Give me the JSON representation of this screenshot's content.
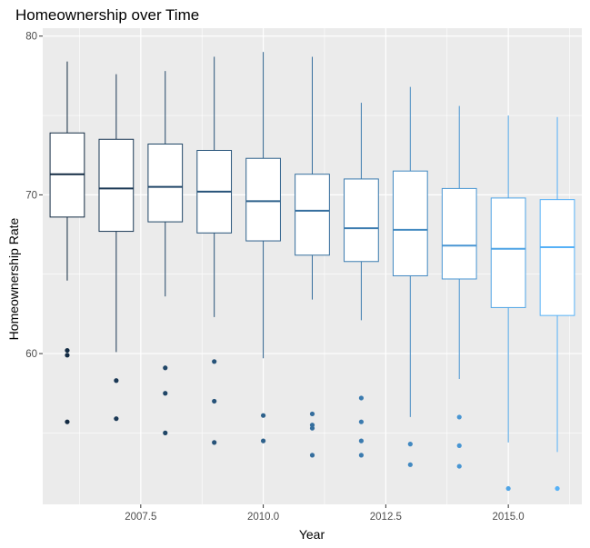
{
  "chart_data": {
    "type": "boxplot",
    "title": "Homeownership over Time",
    "xlabel": "Year",
    "ylabel": "Homeownership Rate",
    "xlim": [
      2005.5,
      2016.5
    ],
    "ylim": [
      50.5,
      80.5
    ],
    "x_ticks": [
      2007.5,
      2010.0,
      2012.5,
      2015.0
    ],
    "x_tick_labels": [
      "2007.5",
      "2010.0",
      "2012.5",
      "2015.0"
    ],
    "y_ticks": [
      60,
      70,
      80
    ],
    "y_tick_labels": [
      "60",
      "70",
      "80"
    ],
    "grid": true,
    "legend": "none",
    "colors": {
      "panel_background": "#ebebeb",
      "grid": "#ffffff",
      "box_fill": "#ffffff",
      "color_dark": "#132b43",
      "color_light": "#56b1f7"
    },
    "boxes": [
      {
        "x": 2006,
        "min": 64.6,
        "q1": 68.6,
        "median": 71.3,
        "q3": 73.9,
        "max": 78.4,
        "outliers": [
          60.2,
          59.9,
          55.7
        ]
      },
      {
        "x": 2007,
        "min": 60.1,
        "q1": 67.7,
        "median": 70.4,
        "q3": 73.5,
        "max": 77.6,
        "outliers": [
          58.3,
          55.9
        ]
      },
      {
        "x": 2008,
        "min": 63.6,
        "q1": 68.3,
        "median": 70.5,
        "q3": 73.2,
        "max": 77.8,
        "outliers": [
          59.1,
          57.5,
          55.0
        ]
      },
      {
        "x": 2009,
        "min": 62.3,
        "q1": 67.6,
        "median": 70.2,
        "q3": 72.8,
        "max": 78.7,
        "outliers": [
          59.5,
          57.0,
          54.4
        ]
      },
      {
        "x": 2010,
        "min": 59.7,
        "q1": 67.1,
        "median": 69.6,
        "q3": 72.3,
        "max": 79.0,
        "outliers": [
          56.1,
          54.5
        ]
      },
      {
        "x": 2011,
        "min": 63.4,
        "q1": 66.2,
        "median": 69.0,
        "q3": 71.3,
        "max": 78.7,
        "outliers": [
          56.2,
          55.5,
          55.3,
          53.6
        ]
      },
      {
        "x": 2012,
        "min": 62.1,
        "q1": 65.8,
        "median": 67.9,
        "q3": 71.0,
        "max": 75.8,
        "outliers": [
          57.2,
          55.7,
          54.5,
          53.6
        ]
      },
      {
        "x": 2013,
        "min": 56.0,
        "q1": 64.9,
        "median": 67.8,
        "q3": 71.5,
        "max": 76.8,
        "outliers": [
          54.3,
          53.0
        ]
      },
      {
        "x": 2014,
        "min": 58.4,
        "q1": 64.7,
        "median": 66.8,
        "q3": 70.4,
        "max": 75.6,
        "outliers": [
          56.0,
          54.2,
          52.9
        ]
      },
      {
        "x": 2015,
        "min": 54.4,
        "q1": 62.9,
        "median": 66.6,
        "q3": 69.8,
        "max": 75.0,
        "outliers": [
          51.5
        ]
      },
      {
        "x": 2016,
        "min": 53.8,
        "q1": 62.4,
        "median": 66.7,
        "q3": 69.7,
        "max": 74.9,
        "outliers": [
          51.5
        ]
      }
    ]
  }
}
